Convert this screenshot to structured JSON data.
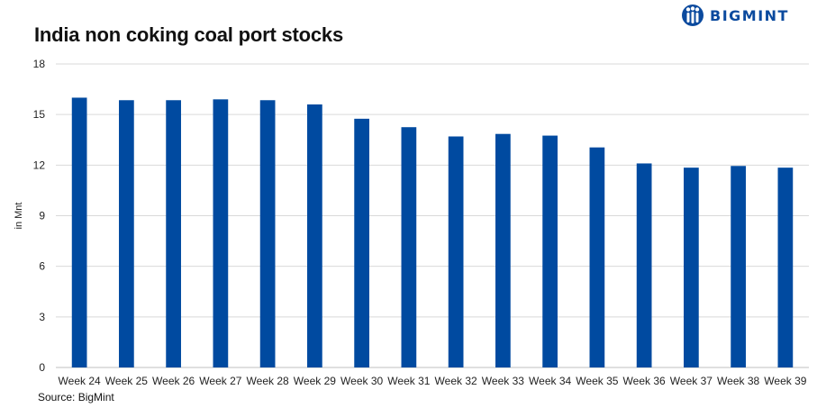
{
  "header": {
    "title": "India non coking coal port stocks",
    "brand": "BIGMINT"
  },
  "footer": {
    "source": "Source: BigMint"
  },
  "colors": {
    "bar": "#004aa0",
    "grid": "#d9d9d9",
    "brand": "#0b4a9e"
  },
  "chart_data": {
    "type": "bar",
    "title": "India non coking coal port stocks",
    "xlabel": "",
    "ylabel": "in Mnt",
    "ylim": [
      0,
      18
    ],
    "yticks": [
      0,
      3,
      6,
      9,
      12,
      15,
      18
    ],
    "grid": true,
    "categories": [
      "Week 24",
      "Week 25",
      "Week 26",
      "Week 27",
      "Week 28",
      "Week 29",
      "Week 30",
      "Week 31",
      "Week 32",
      "Week 33",
      "Week 34",
      "Week 35",
      "Week 36",
      "Week 37",
      "Week 38",
      "Week 39"
    ],
    "values": [
      16.0,
      15.85,
      15.85,
      15.9,
      15.85,
      15.6,
      14.75,
      14.25,
      13.7,
      13.85,
      13.75,
      13.05,
      12.1,
      11.85,
      11.95,
      11.85
    ]
  }
}
